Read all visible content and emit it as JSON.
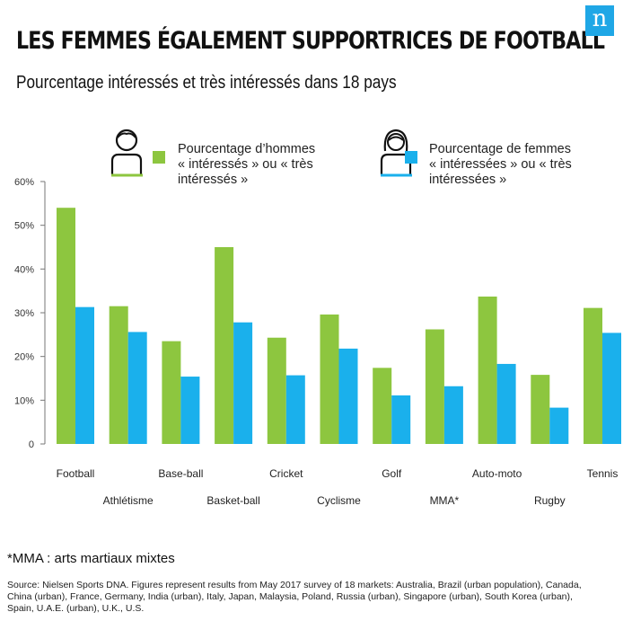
{
  "header": {
    "title": "LES FEMMES ÉGALEMENT SUPPORTRICES DE FOOTBALL",
    "subtitle": "Pourcentage intéressés et très intéressés dans 18 pays",
    "logo": "n"
  },
  "legend": {
    "men": {
      "icon": "man-icon",
      "lines": [
        "Pourcentage d’hommes",
        "« intéressés » ou « très",
        "intéressés »"
      ]
    },
    "women": {
      "icon": "woman-icon",
      "lines": [
        "Pourcentage de femmes",
        "« intéressées » ou « très",
        "intéressées »"
      ]
    }
  },
  "chart_data": {
    "type": "bar",
    "categories": [
      "Football",
      "Athlétisme",
      "Base-ball",
      "Basket-ball",
      "Cricket",
      "Cyclisme",
      "Golf",
      "MMA*",
      "Auto-moto",
      "Rugby",
      "Tennis"
    ],
    "series": [
      {
        "name": "Pourcentage d’hommes « intéressés » ou « très intéressés »",
        "color": "#8dc63f",
        "values": [
          54,
          31.5,
          23.5,
          45,
          24.3,
          29.6,
          17.4,
          26.2,
          33.7,
          15.8,
          31.1
        ]
      },
      {
        "name": "Pourcentage de femmes « intéressées » ou « très intéressées »",
        "color": "#1ab0ec",
        "values": [
          31.3,
          25.6,
          15.4,
          27.8,
          15.7,
          21.8,
          11.1,
          13.2,
          18.3,
          8.3,
          25.4
        ]
      }
    ],
    "yticks": [
      "0",
      "10%",
      "20%",
      "30%",
      "40%",
      "50%",
      "60%"
    ],
    "ylim": [
      0,
      60
    ],
    "grid": false,
    "legend_position": "top"
  },
  "footnote": "*MMA : arts martiaux mixtes",
  "source": "Source: Nielsen Sports DNA. Figures represent results from May 2017 survey of 18 markets: Australia, Brazil (urban population), Canada, China (urban), France, Germany, India (urban), Italy, Japan, Malaysia, Poland, Russia (urban), Singapore (urban), South Korea (urban), Spain, U.A.E. (urban), U.K., U.S."
}
